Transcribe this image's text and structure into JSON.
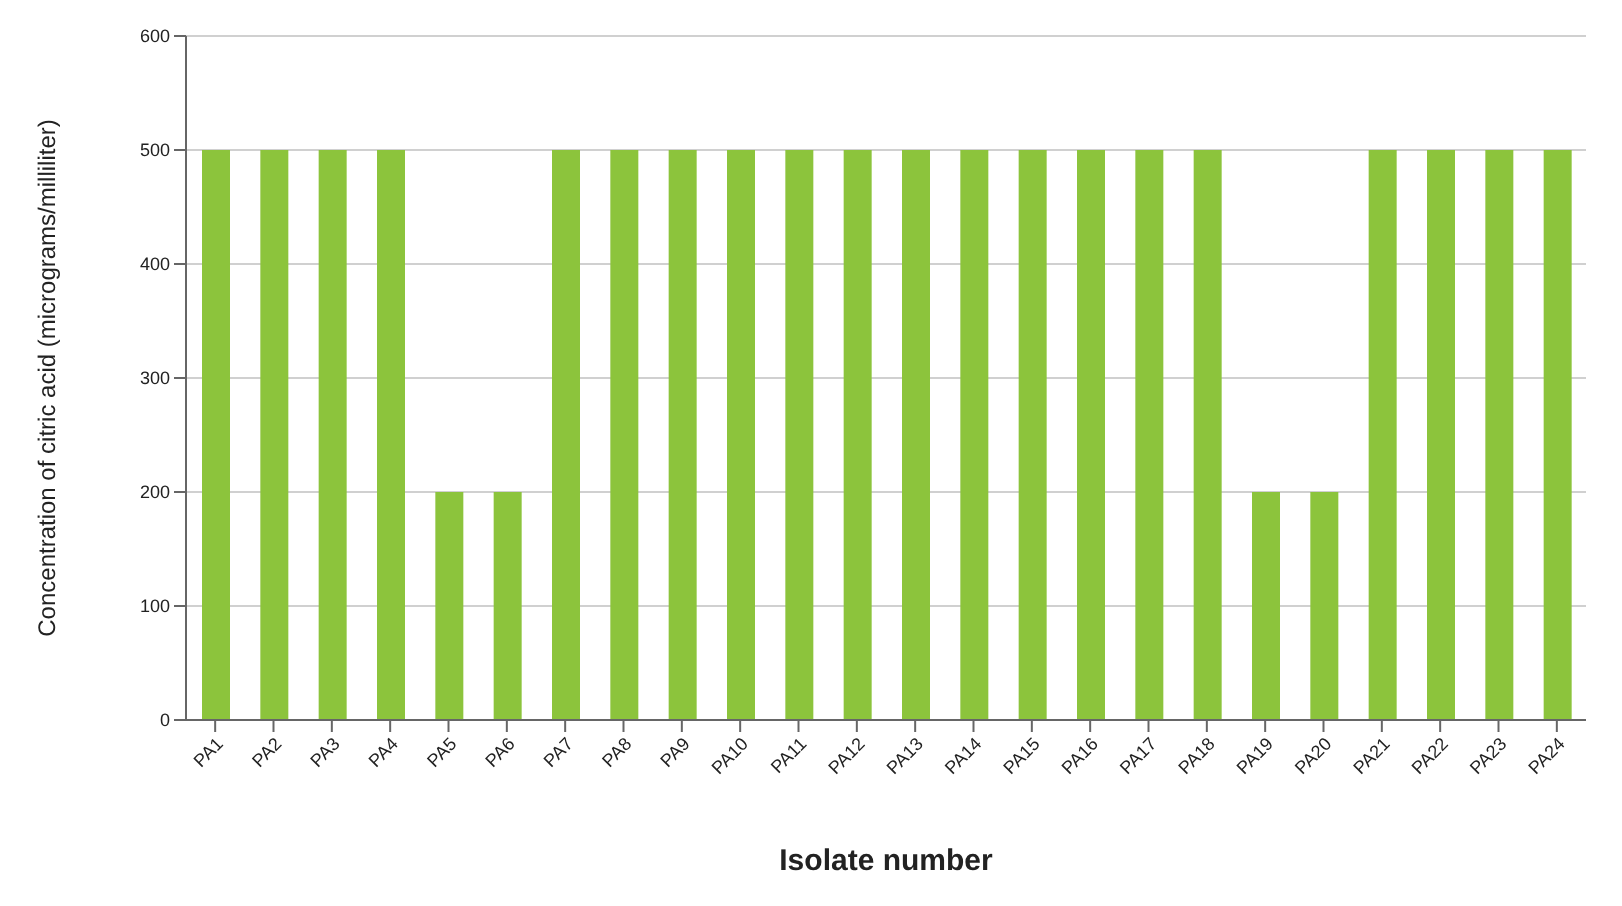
{
  "chart_data": {
    "type": "bar",
    "xlabel": "Isolate number",
    "ylabel": "Concentration of citric acid (micrograms/milliliter)",
    "categories": [
      "PA1",
      "PA2",
      "PA3",
      "PA4",
      "PA5",
      "PA6",
      "PA7",
      "PA8",
      "PA9",
      "PA10",
      "PA11",
      "PA12",
      "PA13",
      "PA14",
      "PA15",
      "PA16",
      "PA17",
      "PA18",
      "PA19",
      "PA20",
      "PA21",
      "PA22",
      "PA23",
      "PA24"
    ],
    "values": [
      500,
      500,
      500,
      500,
      200,
      200,
      500,
      500,
      500,
      500,
      500,
      500,
      500,
      500,
      500,
      500,
      500,
      500,
      200,
      200,
      500,
      500,
      500,
      500
    ],
    "color": "#8cc43c",
    "ylim": [
      0,
      600
    ],
    "yticks": [
      0,
      100,
      200,
      300,
      400,
      500,
      600
    ],
    "grid": "y"
  }
}
